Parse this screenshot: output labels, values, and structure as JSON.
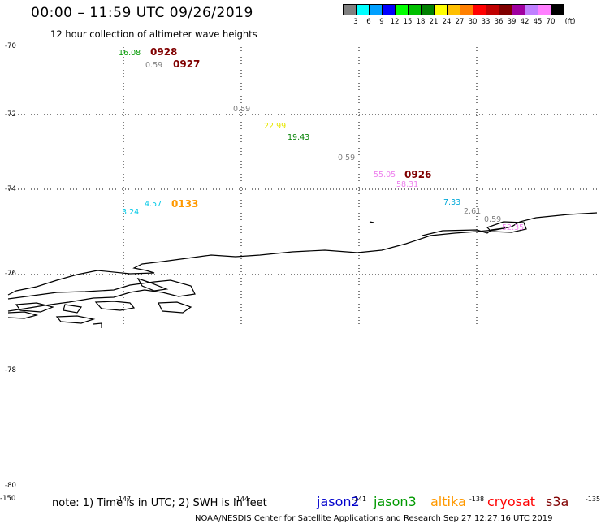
{
  "header": {
    "title": "00:00 – 11:59 UTC 09/26/2019",
    "subtitle": "12 hour collection of altimeter wave heights"
  },
  "colorbar": {
    "unit": "(ft)",
    "colors": [
      "#808080",
      "#00ffff",
      "#00a0ff",
      "#0000ff",
      "#00ff00",
      "#00c000",
      "#008000",
      "#ffff00",
      "#ffc000",
      "#ff8000",
      "#ff0000",
      "#c00000",
      "#800000",
      "#a000a0",
      "#c080ff",
      "#ff80ff",
      "#000000"
    ],
    "labels": [
      "3",
      "6",
      "9",
      "12",
      "15",
      "18",
      "21",
      "24",
      "27",
      "30",
      "33",
      "36",
      "39",
      "42",
      "45",
      "70"
    ]
  },
  "axes": {
    "lat_labels": [
      "-70",
      "-72",
      "-74",
      "-76",
      "-78",
      "-80"
    ],
    "bottom_lat": "-150",
    "lon_labels": [
      "-147",
      "-144",
      "-141",
      "-138",
      "-135"
    ]
  },
  "observations": [
    {
      "text": "16.08",
      "color": "#009900"
    },
    {
      "text": "0.59",
      "color": "#808080"
    },
    {
      "text": "0.59",
      "color": "#808080"
    },
    {
      "text": "22.99",
      "color": "#e6e600"
    },
    {
      "text": "19.43",
      "color": "#008000"
    },
    {
      "text": "0.59",
      "color": "#808080"
    },
    {
      "text": "55.05",
      "color": "#ee82ee"
    },
    {
      "text": "58.31",
      "color": "#ee82ee"
    },
    {
      "text": "4.57",
      "color": "#00c8e6"
    },
    {
      "text": "3.24",
      "color": "#00c8e6"
    },
    {
      "text": "7.33",
      "color": "#00a8d8"
    },
    {
      "text": "2.61",
      "color": "#808080"
    },
    {
      "text": "0.59",
      "color": "#808080"
    },
    {
      "text": "52.35",
      "color": "#ee82ee"
    }
  ],
  "timestamps": [
    {
      "text": "0928",
      "color": "#800000"
    },
    {
      "text": "0927",
      "color": "#800000"
    },
    {
      "text": "0926",
      "color": "#800000"
    },
    {
      "text": "0133",
      "color": "#ff9900"
    }
  ],
  "footer": {
    "note": "note: 1) Time is in UTC; 2) SWH is in feet",
    "satellites": [
      {
        "name": "jason2",
        "color": "#0000cc"
      },
      {
        "name": "jason3",
        "color": "#009900"
      },
      {
        "name": "altika",
        "color": "#ff9900"
      },
      {
        "name": "cryosat",
        "color": "#ff0000"
      },
      {
        "name": "s3a",
        "color": "#800000"
      }
    ],
    "credit": "NOAA/NESDIS Center for Satellite Applications and Research    Sep 27 12:27:16 UTC 2019"
  }
}
